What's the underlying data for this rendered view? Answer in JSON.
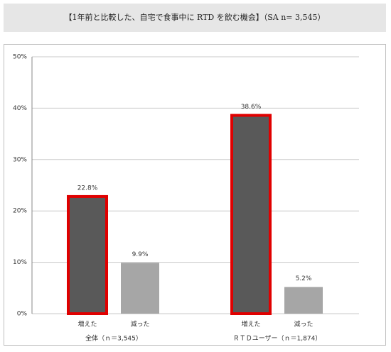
{
  "chart_data": {
    "type": "bar",
    "title": "【1年前と比較した、自宅で食事中に RTD を飲む機会】（SA n= 3,545）",
    "categories": [
      "全体（ｎ＝3,545）",
      "ＲＴＤユーザー（ｎ＝1,874）"
    ],
    "series": [
      {
        "name": "増えた",
        "color": "#595959",
        "border_color": "#e00000",
        "values": [
          22.8,
          38.6
        ],
        "value_labels": [
          "22.8%",
          "38.6%"
        ]
      },
      {
        "name": "減った",
        "color": "#a6a6a6",
        "values": [
          9.9,
          5.2
        ],
        "value_labels": [
          "9.9%",
          "5.2%"
        ]
      }
    ],
    "ylim": [
      0,
      50
    ],
    "yticks": [
      {
        "value": 0,
        "label": "0%"
      },
      {
        "value": 10,
        "label": "10%"
      },
      {
        "value": 20,
        "label": "20%"
      },
      {
        "value": 30,
        "label": "30%"
      },
      {
        "value": 40,
        "label": "40%"
      },
      {
        "value": 50,
        "label": "50%"
      }
    ],
    "grid": true
  }
}
